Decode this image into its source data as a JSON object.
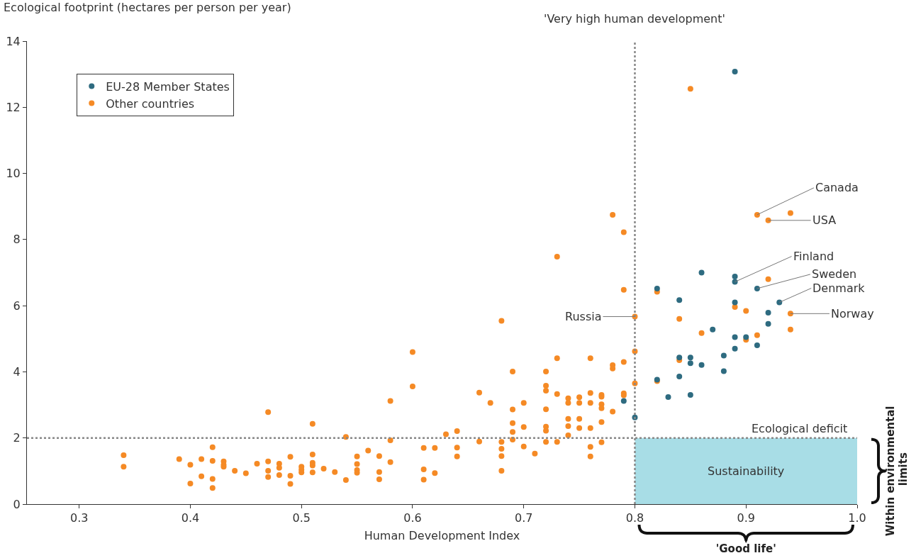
{
  "chart_data": {
    "type": "scatter",
    "xlabel": "Human Development Index",
    "ylabel": "Ecological footprint (hectares per person per year)",
    "xlim": [
      0.253,
      1.0
    ],
    "xticks": [
      0.3,
      0.4,
      0.5,
      0.6,
      0.7,
      0.8,
      0.9,
      {
        "value": 1.0,
        "label": "1.0"
      }
    ],
    "ylim": [
      0,
      14
    ],
    "yticks": [
      0,
      2,
      4,
      6,
      8,
      10,
      12,
      14
    ],
    "grid": false,
    "legend": "top left",
    "marker": "circle",
    "series": [
      {
        "name": "EU-28 Member States",
        "color": "#2e6b80",
        "x": [
          0.79,
          0.8,
          0.82,
          0.82,
          0.83,
          0.84,
          0.84,
          0.84,
          0.85,
          0.85,
          0.85,
          0.86,
          0.86,
          0.87,
          0.88,
          0.88,
          0.89,
          0.89,
          0.89,
          0.89,
          0.89,
          0.89,
          0.9,
          0.91,
          0.91,
          0.92,
          0.92,
          0.93
        ],
        "values": [
          3.12,
          2.62,
          6.52,
          3.76,
          3.24,
          6.17,
          4.43,
          3.86,
          4.43,
          4.26,
          3.3,
          7.0,
          4.21,
          5.28,
          4.49,
          4.02,
          13.08,
          6.88,
          6.72,
          6.1,
          5.05,
          4.7,
          5.05,
          6.52,
          4.8,
          5.79,
          5.45,
          6.1
        ]
      },
      {
        "name": "Other countries",
        "color": "#f58a25",
        "x": [
          0.34,
          0.34,
          0.39,
          0.4,
          0.4,
          0.41,
          0.41,
          0.42,
          0.42,
          0.42,
          0.42,
          0.43,
          0.43,
          0.43,
          0.44,
          0.45,
          0.46,
          0.47,
          0.47,
          0.47,
          0.47,
          0.48,
          0.48,
          0.48,
          0.49,
          0.49,
          0.49,
          0.5,
          0.5,
          0.5,
          0.51,
          0.51,
          0.51,
          0.51,
          0.51,
          0.52,
          0.53,
          0.54,
          0.54,
          0.55,
          0.55,
          0.55,
          0.55,
          0.56,
          0.57,
          0.57,
          0.57,
          0.58,
          0.58,
          0.58,
          0.6,
          0.6,
          0.61,
          0.61,
          0.61,
          0.62,
          0.62,
          0.63,
          0.64,
          0.64,
          0.64,
          0.66,
          0.66,
          0.67,
          0.68,
          0.68,
          0.68,
          0.68,
          0.68,
          0.69,
          0.69,
          0.69,
          0.69,
          0.69,
          0.7,
          0.7,
          0.7,
          0.71,
          0.72,
          0.72,
          0.72,
          0.72,
          0.72,
          0.72,
          0.72,
          0.73,
          0.73,
          0.73,
          0.73,
          0.74,
          0.74,
          0.74,
          0.74,
          0.74,
          0.75,
          0.75,
          0.75,
          0.75,
          0.76,
          0.76,
          0.76,
          0.76,
          0.76,
          0.76,
          0.77,
          0.77,
          0.77,
          0.77,
          0.77,
          0.77,
          0.78,
          0.78,
          0.78,
          0.78,
          0.79,
          0.79,
          0.79,
          0.79,
          0.79,
          0.8,
          0.8,
          0.8,
          0.82,
          0.82,
          0.84,
          0.84,
          0.85,
          0.86,
          0.89,
          0.9,
          0.9,
          0.91,
          0.91,
          0.92,
          0.92,
          0.94,
          0.94,
          0.94
        ],
        "values": [
          1.48,
          1.13,
          1.36,
          1.19,
          0.62,
          1.36,
          0.84,
          1.72,
          1.31,
          0.76,
          0.49,
          1.29,
          1.19,
          1.13,
          1.01,
          0.93,
          1.22,
          2.78,
          1.29,
          1.01,
          0.82,
          1.22,
          1.1,
          0.88,
          1.43,
          0.86,
          0.61,
          1.13,
          1.04,
          0.96,
          2.43,
          1.5,
          1.25,
          1.17,
          0.96,
          1.07,
          0.97,
          2.03,
          0.73,
          1.44,
          1.21,
          1.03,
          0.95,
          1.62,
          1.45,
          0.97,
          0.75,
          3.12,
          1.93,
          1.27,
          4.6,
          3.56,
          1.7,
          1.05,
          0.74,
          1.7,
          0.94,
          2.11,
          2.21,
          1.71,
          1.44,
          3.37,
          1.89,
          3.06,
          5.54,
          1.88,
          1.67,
          1.45,
          1.01,
          4.01,
          2.86,
          2.45,
          2.18,
          1.95,
          3.06,
          2.33,
          1.74,
          1.53,
          4.01,
          3.58,
          3.43,
          2.87,
          2.34,
          2.22,
          1.88,
          7.48,
          4.41,
          3.33,
          1.88,
          3.2,
          3.06,
          2.58,
          2.36,
          2.08,
          3.23,
          3.06,
          2.58,
          2.3,
          4.41,
          3.36,
          3.06,
          2.3,
          1.73,
          1.44,
          3.3,
          3.25,
          3.02,
          2.9,
          2.48,
          1.87,
          8.75,
          4.2,
          4.1,
          2.8,
          8.22,
          6.48,
          4.3,
          3.35,
          3.29,
          5.67,
          4.62,
          3.65,
          6.42,
          3.72,
          5.6,
          4.35,
          12.56,
          5.17,
          5.96,
          5.84,
          4.97,
          8.75,
          5.11,
          8.58,
          6.8,
          8.8,
          5.76,
          5.28
        ]
      }
    ],
    "ref_lines": [
      {
        "axis": "x",
        "value": 0.8,
        "label": "'Very high human development'",
        "color": "#888888",
        "line_style": "dotted"
      },
      {
        "axis": "y",
        "value": 2,
        "label": "Ecological deficit",
        "color": "#888888",
        "line_style": "dotted"
      }
    ],
    "bands": [
      {
        "axis": "y",
        "from": 0,
        "to": 2,
        "label": "Sustainability",
        "color": "#a8dde6"
      }
    ],
    "annotations": [
      {
        "text": "Canada",
        "x": 0.91,
        "y": 8.75
      },
      {
        "text": "USA",
        "x": 0.92,
        "y": 8.58
      },
      {
        "text": "Finland",
        "x": 0.89,
        "y": 6.72
      },
      {
        "text": "Sweden",
        "x": 0.91,
        "y": 6.52
      },
      {
        "text": "Denmark",
        "x": 0.93,
        "y": 6.1
      },
      {
        "text": "Norway",
        "x": 0.94,
        "y": 5.76
      },
      {
        "text": "Russia",
        "x": 0.8,
        "y": 5.67
      },
      "'Good life'",
      "Within environmental limits"
    ]
  }
}
